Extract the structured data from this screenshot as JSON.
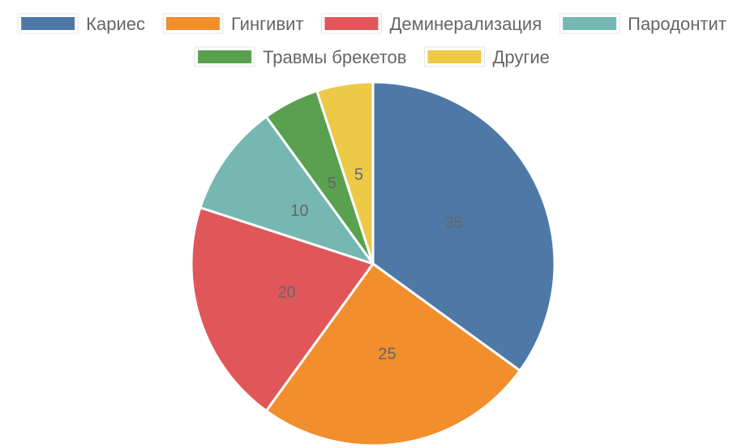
{
  "chart_data": {
    "type": "pie",
    "categories": [
      "Кариес",
      "Гингивит",
      "Деминерализация",
      "Пародонтит",
      "Травмы брекетов",
      "Другие"
    ],
    "values": [
      35,
      25,
      20,
      10,
      5,
      5
    ],
    "data_labels": [
      "35",
      "25",
      "20",
      "10",
      "5",
      "5"
    ],
    "colors": [
      "#4e79a7",
      "#f28e2b",
      "#e15759",
      "#76b7b2",
      "#59a14f",
      "#edc948"
    ],
    "legend_position": "top",
    "start_angle": "top",
    "direction": "clockwise"
  }
}
